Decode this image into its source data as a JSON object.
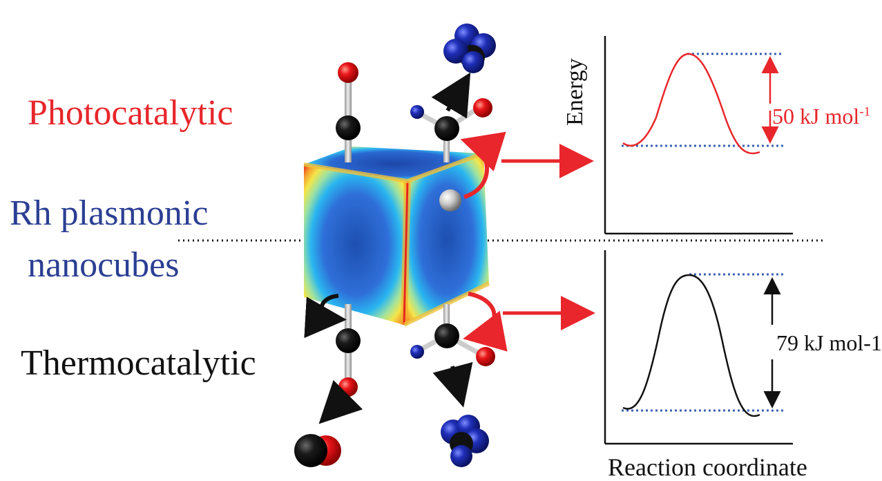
{
  "labels": {
    "photocatalytic": "Photocatalytic",
    "rh_line1": "Rh plasmonic",
    "rh_line2": "nanocubes",
    "thermocatalytic": "Thermocatalytic"
  },
  "energy_plots": {
    "y_axis_label": "Energy",
    "x_axis_label": "Reaction coordinate",
    "photo_barrier": {
      "value": "50 kJ mol",
      "superscript": "-1"
    },
    "thermo_barrier": "79 kJ mol-1"
  },
  "colors": {
    "photo": "#e8262b",
    "rh": "#2b3f93",
    "thermo": "#111111",
    "dotted_level": "#3a5fb0"
  }
}
